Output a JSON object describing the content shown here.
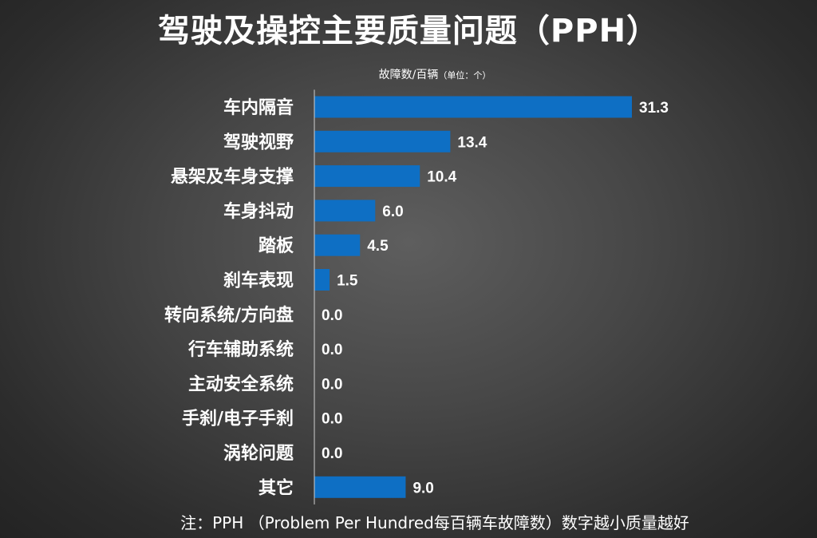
{
  "chart_data": {
    "type": "bar",
    "orientation": "horizontal",
    "title": "驾驶及操控主要质量问题（PPH）",
    "xlabel": "故障数/百辆",
    "unit_note": "（单位：个）",
    "categories": [
      "车内隔音",
      "驾驶视野",
      "悬架及车身支撑",
      "车身抖动",
      "踏板",
      "刹车表现",
      "转向系统/方向盘",
      "行车辅助系统",
      "主动安全系统",
      "手刹/电子手刹",
      "涡轮问题",
      "其它"
    ],
    "values": [
      31.3,
      13.4,
      10.4,
      6.0,
      4.5,
      1.5,
      0.0,
      0.0,
      0.0,
      0.0,
      0.0,
      9.0
    ],
    "value_labels": [
      "31.3",
      "13.4",
      "10.4",
      "6.0",
      "4.5",
      "1.5",
      "0.0",
      "0.0",
      "0.0",
      "0.0",
      "0.0",
      "9.0"
    ],
    "xlim": [
      0,
      31.3
    ],
    "grid": false,
    "bar_color": "#0e6fc4"
  },
  "footnote": "注：PPH （Problem Per Hundred每百辆车故障数）数字越小质量越好"
}
